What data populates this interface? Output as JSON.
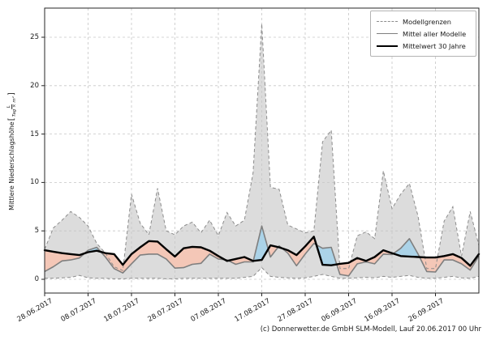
{
  "caption": "(c) Donnerwetter.de GmbH SLM-Modell, Lauf 20.06.2017 00 Uhr",
  "y_axis": {
    "label": "Mittlere Niederschlagshöhe",
    "bracket_open": "[",
    "bracket_close": "]",
    "unit_num": "L",
    "unit_den": "Tag × m²",
    "ticks": [
      "0",
      "5",
      "10",
      "15",
      "20",
      "25"
    ]
  },
  "x_axis": {
    "tick_labels": [
      "28.06.2017",
      "08.07.2017",
      "18.07.2017",
      "28.07.2017",
      "07.08.2017",
      "17.08.2017",
      "27.08.2017",
      "06.09.2017",
      "16.09.2017",
      "26.09.2017"
    ]
  },
  "legend": {
    "items": [
      {
        "label": "Modellgrenzen",
        "style": "dashed-gray"
      },
      {
        "label": "Mittel aller Modelle",
        "style": "solid-gray"
      },
      {
        "label": "Mittelwert 30 Jahre",
        "style": "solid-black-thick"
      }
    ]
  },
  "colors": {
    "band": "#dcdcdc",
    "bound": "#8c8c8c",
    "mean": "#7f7f7f",
    "mean30": "#000000",
    "above": "#abd3e8",
    "below": "#f4c7b7",
    "grid": "#c6c6c6",
    "frame": "#262626"
  },
  "chart_data": {
    "type": "area",
    "title": "",
    "xlabel": "",
    "ylabel": "Mittlere Niederschlagshöhe [L/(Tag × m²)]",
    "x_start_date": "28.06.2017",
    "x_unit": "days since 28.06.2017",
    "xlim_days": [
      0,
      100
    ],
    "ylim": [
      -1.4,
      28
    ],
    "grid": "dashed",
    "legend_position": "upper right",
    "y_ticks": [
      0,
      5,
      10,
      15,
      20,
      25
    ],
    "x_tick_days": [
      0,
      10,
      20,
      30,
      40,
      50,
      60,
      70,
      80,
      90
    ],
    "x_tick_labels": [
      "28.06.2017",
      "08.07.2017",
      "18.07.2017",
      "28.07.2017",
      "07.08.2017",
      "17.08.2017",
      "27.08.2017",
      "06.09.2017",
      "16.09.2017",
      "26.09.2017"
    ],
    "x_days": [
      0,
      2,
      4,
      6,
      8,
      10,
      12,
      14,
      16,
      18,
      20,
      22,
      24,
      26,
      28,
      30,
      32,
      34,
      36,
      38,
      40,
      42,
      44,
      46,
      48,
      50,
      52,
      54,
      56,
      58,
      60,
      62,
      64,
      66,
      68,
      70,
      72,
      74,
      76,
      78,
      80,
      82,
      84,
      86,
      88,
      90,
      92,
      94,
      96,
      98,
      100
    ],
    "series": [
      {
        "key": "max",
        "name": "Modellgrenze oben",
        "values": [
          3.1,
          5.3,
          6.1,
          7.0,
          6.4,
          5.5,
          3.7,
          2.7,
          1.3,
          0.9,
          8.8,
          5.8,
          4.6,
          9.4,
          5.0,
          4.6,
          5.5,
          5.9,
          4.8,
          6.1,
          4.5,
          6.9,
          5.5,
          6.1,
          11.0,
          26.4,
          9.5,
          9.3,
          5.6,
          5.2,
          4.8,
          5.0,
          14.2,
          15.4,
          1.1,
          1.1,
          4.5,
          4.9,
          4.2,
          11.2,
          7.3,
          8.8,
          9.9,
          6.5,
          1.1,
          1.1,
          6.0,
          7.5,
          2.4,
          7.0,
          3.5
        ]
      },
      {
        "key": "min",
        "name": "Modellgrenze unten",
        "values": [
          0.1,
          0.1,
          0.15,
          0.2,
          0.4,
          0.15,
          0.1,
          0.1,
          0.05,
          0.05,
          0.1,
          0.1,
          0.1,
          0.1,
          0.05,
          0.05,
          0.1,
          0.1,
          0.1,
          0.1,
          0.1,
          0.1,
          0.1,
          0.2,
          0.3,
          1.2,
          0.3,
          0.2,
          0.15,
          0.1,
          0.15,
          0.3,
          0.5,
          0.3,
          0.1,
          0.1,
          0.15,
          0.2,
          0.15,
          0.3,
          0.2,
          0.3,
          0.4,
          0.2,
          0.1,
          0.1,
          0.2,
          0.3,
          0.15,
          0.1,
          0.3
        ]
      },
      {
        "key": "mean",
        "name": "Mittel aller Modelle",
        "values": [
          0.8,
          1.3,
          1.9,
          2.0,
          2.2,
          3.0,
          3.3,
          2.3,
          1.1,
          0.65,
          1.6,
          2.5,
          2.6,
          2.6,
          2.1,
          1.15,
          1.2,
          1.55,
          1.65,
          2.6,
          2.1,
          2.0,
          1.55,
          1.8,
          1.8,
          5.5,
          2.3,
          3.45,
          2.7,
          1.4,
          2.6,
          3.7,
          3.2,
          3.3,
          0.5,
          0.35,
          1.6,
          1.8,
          1.6,
          2.6,
          2.55,
          3.2,
          4.2,
          2.6,
          0.8,
          0.75,
          2.0,
          2.0,
          1.6,
          0.95,
          2.4
        ]
      },
      {
        "key": "mean30",
        "name": "Mittelwert 30 Jahre",
        "values": [
          3.0,
          2.85,
          2.7,
          2.6,
          2.5,
          2.8,
          2.95,
          2.7,
          2.6,
          1.5,
          2.6,
          3.3,
          3.95,
          3.9,
          3.1,
          2.35,
          3.2,
          3.35,
          3.3,
          2.95,
          2.4,
          1.9,
          2.1,
          2.3,
          1.9,
          2.0,
          3.5,
          3.3,
          3.0,
          2.5,
          3.4,
          4.4,
          1.5,
          1.45,
          1.6,
          1.7,
          2.2,
          1.9,
          2.3,
          3.0,
          2.7,
          2.4,
          2.35,
          2.3,
          2.25,
          2.25,
          2.4,
          2.6,
          2.2,
          1.4,
          2.6
        ]
      }
    ]
  }
}
